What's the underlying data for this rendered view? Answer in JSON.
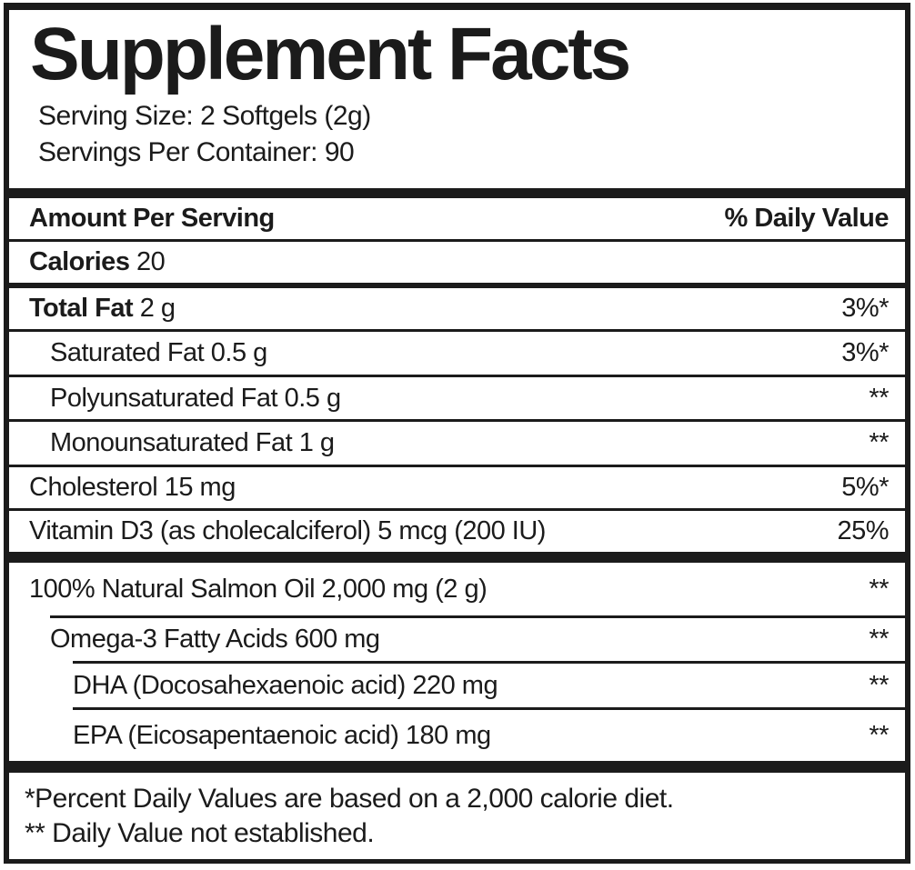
{
  "label": {
    "title": "Supplement Facts",
    "serving_size": "Serving Size: 2 Softgels (2g)",
    "servings_per_container": "Servings Per Container: 90",
    "table_header": {
      "left": "Amount Per Serving",
      "right": "% Daily Value"
    },
    "rows_main": [
      {
        "bold": "Calories",
        "rest": " 20",
        "value": ""
      },
      {
        "bold": "Total Fat",
        "rest": " 2 g",
        "value": "3%*"
      },
      {
        "bold": "",
        "rest": "Saturated Fat 0.5 g",
        "value": "3%*"
      },
      {
        "bold": "",
        "rest": "Polyunsaturated Fat 0.5 g",
        "value": "**"
      },
      {
        "bold": "",
        "rest": "Monounsaturated Fat 1 g",
        "value": "**"
      },
      {
        "bold": "",
        "rest": "Cholesterol 15 mg",
        "value": "5%*"
      },
      {
        "bold": "",
        "rest": "Vitamin D3 (as cholecalciferol) 5 mcg (200 IU)",
        "value": "25%"
      }
    ],
    "rows_blend": [
      {
        "rest": "100% Natural Salmon Oil 2,000 mg (2 g)",
        "value": "**"
      },
      {
        "rest": "Omega-3 Fatty Acids 600 mg",
        "value": "**"
      },
      {
        "rest": "DHA (Docosahexaenoic acid) 220 mg",
        "value": "**"
      },
      {
        "rest": "EPA (Eicosapentaenoic acid) 180 mg",
        "value": "**"
      }
    ],
    "footnotes": [
      "*Percent Daily Values are based on a 2,000 calorie diet.",
      "** Daily Value not established."
    ],
    "colors": {
      "ink": "#1b1b1b",
      "background": "#ffffff"
    }
  }
}
